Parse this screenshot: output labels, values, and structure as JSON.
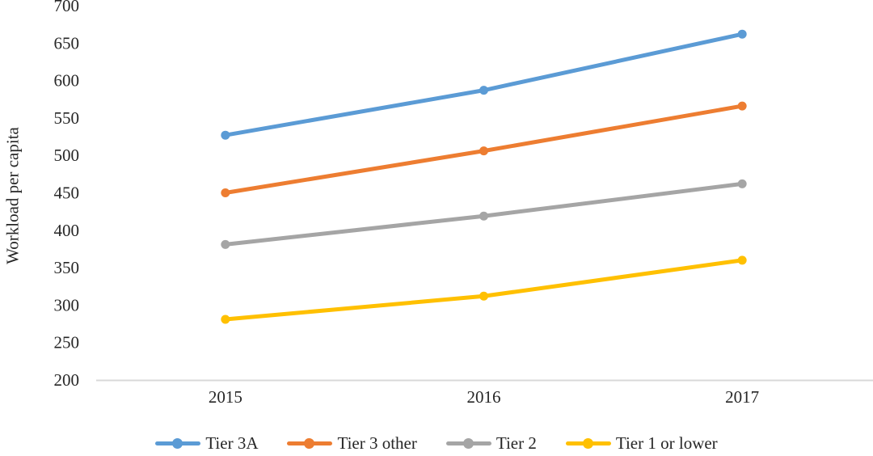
{
  "chart_data": {
    "type": "line",
    "title": "",
    "xlabel": "",
    "ylabel": "Workload per capita",
    "categories": [
      "2015",
      "2016",
      "2017"
    ],
    "series": [
      {
        "name": "Tier 3A",
        "color": "#5B9BD5",
        "values": [
          527,
          587,
          662
        ]
      },
      {
        "name": "Tier 3 other",
        "color": "#ED7D31",
        "values": [
          450,
          506,
          566
        ]
      },
      {
        "name": "Tier 2",
        "color": "#A5A5A5",
        "values": [
          381,
          419,
          462
        ]
      },
      {
        "name": "Tier 1 or lower",
        "color": "#FFC000",
        "values": [
          281,
          312,
          360
        ]
      }
    ],
    "ylim": [
      200,
      700
    ],
    "y_tick_step": 50,
    "y_ticks": [
      700,
      650,
      600,
      550,
      500,
      450,
      400,
      350,
      300,
      250,
      200
    ],
    "grid": false,
    "legend_position": "bottom",
    "axis_line_color": "#D9D9D9",
    "text_color": "#262626"
  }
}
